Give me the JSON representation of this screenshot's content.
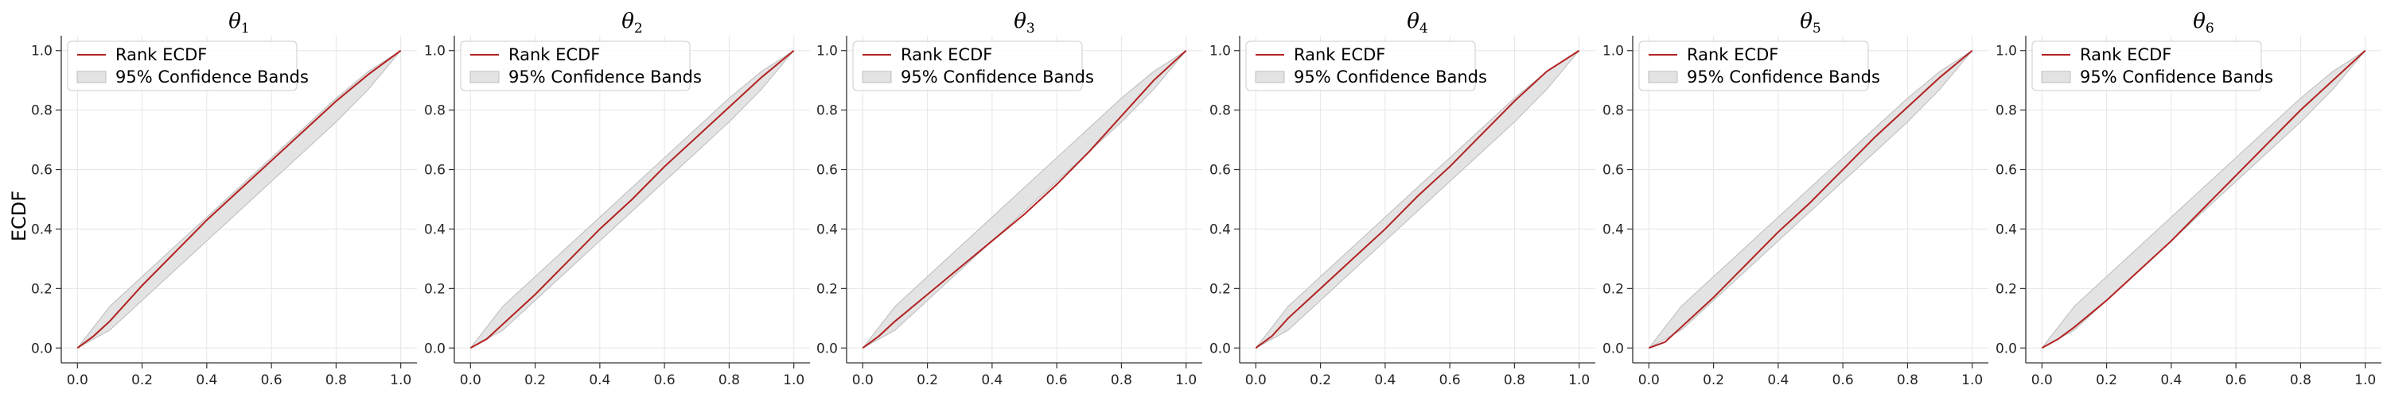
{
  "figure": {
    "ylabel": "ECDF",
    "line_color": "#b22222",
    "band_color": "#e3e3e3",
    "band_edge_color": "#bcbcbc",
    "grid_color": "#e6e6e6"
  },
  "chart_data": [
    {
      "type": "line",
      "title": "θ1",
      "title_symbol": "θ",
      "title_subscript": "1",
      "xlim": [
        -0.05,
        1.05
      ],
      "ylim": [
        -0.05,
        1.05
      ],
      "xticks": [
        "0.0",
        "0.2",
        "0.4",
        "0.6",
        "0.8",
        "1.0"
      ],
      "yticks": [
        "0.0",
        "0.2",
        "0.4",
        "0.6",
        "0.8",
        "1.0"
      ],
      "grid": true,
      "legend": {
        "placement": "top-left",
        "entries": [
          "Rank ECDF",
          "95% Confidence Bands"
        ]
      },
      "series": [
        {
          "name": "Rank ECDF",
          "x": [
            0,
            0.05,
            0.1,
            0.15,
            0.2,
            0.3,
            0.4,
            0.5,
            0.6,
            0.7,
            0.8,
            0.9,
            1.0
          ],
          "y": [
            0,
            0.04,
            0.09,
            0.15,
            0.21,
            0.32,
            0.43,
            0.53,
            0.63,
            0.73,
            0.83,
            0.92,
            1.0
          ]
        }
      ],
      "band": {
        "name": "95% Confidence Bands",
        "x": [
          0,
          0.1,
          0.2,
          0.3,
          0.4,
          0.5,
          0.6,
          0.7,
          0.8,
          0.9,
          1.0
        ],
        "lower": [
          0,
          0.06,
          0.16,
          0.26,
          0.36,
          0.46,
          0.56,
          0.66,
          0.76,
          0.87,
          1.0
        ],
        "upper": [
          0,
          0.14,
          0.24,
          0.34,
          0.44,
          0.54,
          0.64,
          0.74,
          0.84,
          0.93,
          1.0
        ]
      }
    },
    {
      "type": "line",
      "title": "θ2",
      "title_symbol": "θ",
      "title_subscript": "2",
      "xlim": [
        -0.05,
        1.05
      ],
      "ylim": [
        -0.05,
        1.05
      ],
      "xticks": [
        "0.0",
        "0.2",
        "0.4",
        "0.6",
        "0.8",
        "1.0"
      ],
      "yticks": [
        "0.0",
        "0.2",
        "0.4",
        "0.6",
        "0.8",
        "1.0"
      ],
      "grid": true,
      "legend": {
        "placement": "top-left",
        "entries": [
          "Rank ECDF",
          "95% Confidence Bands"
        ]
      },
      "series": [
        {
          "name": "Rank ECDF",
          "x": [
            0,
            0.05,
            0.1,
            0.2,
            0.3,
            0.4,
            0.5,
            0.6,
            0.7,
            0.8,
            0.9,
            1.0
          ],
          "y": [
            0,
            0.03,
            0.08,
            0.18,
            0.29,
            0.4,
            0.5,
            0.61,
            0.71,
            0.81,
            0.91,
            1.0
          ]
        }
      ],
      "band": {
        "name": "95% Confidence Bands",
        "x": [
          0,
          0.1,
          0.2,
          0.3,
          0.4,
          0.5,
          0.6,
          0.7,
          0.8,
          0.9,
          1.0
        ],
        "lower": [
          0,
          0.06,
          0.16,
          0.26,
          0.36,
          0.46,
          0.56,
          0.66,
          0.76,
          0.87,
          1.0
        ],
        "upper": [
          0,
          0.14,
          0.24,
          0.34,
          0.44,
          0.54,
          0.64,
          0.74,
          0.84,
          0.93,
          1.0
        ]
      }
    },
    {
      "type": "line",
      "title": "θ3",
      "title_symbol": "θ",
      "title_subscript": "3",
      "xlim": [
        -0.05,
        1.05
      ],
      "ylim": [
        -0.05,
        1.05
      ],
      "xticks": [
        "0.0",
        "0.2",
        "0.4",
        "0.6",
        "0.8",
        "1.0"
      ],
      "yticks": [
        "0.0",
        "0.2",
        "0.4",
        "0.6",
        "0.8",
        "1.0"
      ],
      "grid": true,
      "legend": {
        "placement": "top-left",
        "entries": [
          "Rank ECDF",
          "95% Confidence Bands"
        ]
      },
      "series": [
        {
          "name": "Rank ECDF",
          "x": [
            0,
            0.05,
            0.1,
            0.2,
            0.3,
            0.4,
            0.5,
            0.6,
            0.7,
            0.8,
            0.9,
            1.0
          ],
          "y": [
            0,
            0.04,
            0.09,
            0.18,
            0.27,
            0.36,
            0.45,
            0.55,
            0.66,
            0.78,
            0.9,
            1.0
          ]
        }
      ],
      "band": {
        "name": "95% Confidence Bands",
        "x": [
          0,
          0.1,
          0.2,
          0.3,
          0.4,
          0.5,
          0.6,
          0.7,
          0.8,
          0.9,
          1.0
        ],
        "lower": [
          0,
          0.06,
          0.16,
          0.26,
          0.36,
          0.46,
          0.56,
          0.66,
          0.76,
          0.87,
          1.0
        ],
        "upper": [
          0,
          0.14,
          0.24,
          0.34,
          0.44,
          0.54,
          0.64,
          0.74,
          0.84,
          0.93,
          1.0
        ]
      }
    },
    {
      "type": "line",
      "title": "θ4",
      "title_symbol": "θ",
      "title_subscript": "4",
      "xlim": [
        -0.05,
        1.05
      ],
      "ylim": [
        -0.05,
        1.05
      ],
      "xticks": [
        "0.0",
        "0.2",
        "0.4",
        "0.6",
        "0.8",
        "1.0"
      ],
      "yticks": [
        "0.0",
        "0.2",
        "0.4",
        "0.6",
        "0.8",
        "1.0"
      ],
      "grid": true,
      "legend": {
        "placement": "top-left",
        "entries": [
          "Rank ECDF",
          "95% Confidence Bands"
        ]
      },
      "series": [
        {
          "name": "Rank ECDF",
          "x": [
            0,
            0.05,
            0.1,
            0.2,
            0.3,
            0.4,
            0.5,
            0.6,
            0.7,
            0.8,
            0.9,
            1.0
          ],
          "y": [
            0,
            0.04,
            0.1,
            0.2,
            0.3,
            0.4,
            0.51,
            0.61,
            0.72,
            0.83,
            0.93,
            1.0
          ]
        }
      ],
      "band": {
        "name": "95% Confidence Bands",
        "x": [
          0,
          0.1,
          0.2,
          0.3,
          0.4,
          0.5,
          0.6,
          0.7,
          0.8,
          0.9,
          1.0
        ],
        "lower": [
          0,
          0.06,
          0.16,
          0.26,
          0.36,
          0.46,
          0.56,
          0.66,
          0.76,
          0.87,
          1.0
        ],
        "upper": [
          0,
          0.14,
          0.24,
          0.34,
          0.44,
          0.54,
          0.64,
          0.74,
          0.84,
          0.93,
          1.0
        ]
      }
    },
    {
      "type": "line",
      "title": "θ5",
      "title_symbol": "θ",
      "title_subscript": "5",
      "xlim": [
        -0.05,
        1.05
      ],
      "ylim": [
        -0.05,
        1.05
      ],
      "xticks": [
        "0.0",
        "0.2",
        "0.4",
        "0.6",
        "0.8",
        "1.0"
      ],
      "yticks": [
        "0.0",
        "0.2",
        "0.4",
        "0.6",
        "0.8",
        "1.0"
      ],
      "grid": true,
      "legend": {
        "placement": "top-left",
        "entries": [
          "Rank ECDF",
          "95% Confidence Bands"
        ]
      },
      "series": [
        {
          "name": "Rank ECDF",
          "x": [
            0,
            0.05,
            0.1,
            0.2,
            0.3,
            0.4,
            0.5,
            0.6,
            0.7,
            0.8,
            0.9,
            1.0
          ],
          "y": [
            0,
            0.02,
            0.07,
            0.17,
            0.28,
            0.39,
            0.49,
            0.6,
            0.71,
            0.81,
            0.91,
            1.0
          ]
        }
      ],
      "band": {
        "name": "95% Confidence Bands",
        "x": [
          0,
          0.1,
          0.2,
          0.3,
          0.4,
          0.5,
          0.6,
          0.7,
          0.8,
          0.9,
          1.0
        ],
        "lower": [
          0,
          0.06,
          0.16,
          0.26,
          0.36,
          0.46,
          0.56,
          0.66,
          0.76,
          0.87,
          1.0
        ],
        "upper": [
          0,
          0.14,
          0.24,
          0.34,
          0.44,
          0.54,
          0.64,
          0.74,
          0.84,
          0.93,
          1.0
        ]
      }
    },
    {
      "type": "line",
      "title": "θ6",
      "title_symbol": "θ",
      "title_subscript": "6",
      "xlim": [
        -0.05,
        1.05
      ],
      "ylim": [
        -0.05,
        1.05
      ],
      "xticks": [
        "0.0",
        "0.2",
        "0.4",
        "0.6",
        "0.8",
        "1.0"
      ],
      "yticks": [
        "0.0",
        "0.2",
        "0.4",
        "0.6",
        "0.8",
        "1.0"
      ],
      "grid": true,
      "legend": {
        "placement": "top-left",
        "entries": [
          "Rank ECDF",
          "95% Confidence Bands"
        ]
      },
      "series": [
        {
          "name": "Rank ECDF",
          "x": [
            0,
            0.05,
            0.1,
            0.2,
            0.3,
            0.4,
            0.5,
            0.6,
            0.7,
            0.8,
            0.9,
            1.0
          ],
          "y": [
            0,
            0.03,
            0.07,
            0.16,
            0.26,
            0.36,
            0.47,
            0.58,
            0.69,
            0.8,
            0.9,
            1.0
          ]
        }
      ],
      "band": {
        "name": "95% Confidence Bands",
        "x": [
          0,
          0.1,
          0.2,
          0.3,
          0.4,
          0.5,
          0.6,
          0.7,
          0.8,
          0.9,
          1.0
        ],
        "lower": [
          0,
          0.06,
          0.16,
          0.26,
          0.36,
          0.46,
          0.56,
          0.66,
          0.76,
          0.87,
          1.0
        ],
        "upper": [
          0,
          0.14,
          0.24,
          0.34,
          0.44,
          0.54,
          0.64,
          0.74,
          0.84,
          0.93,
          1.0
        ]
      }
    }
  ]
}
